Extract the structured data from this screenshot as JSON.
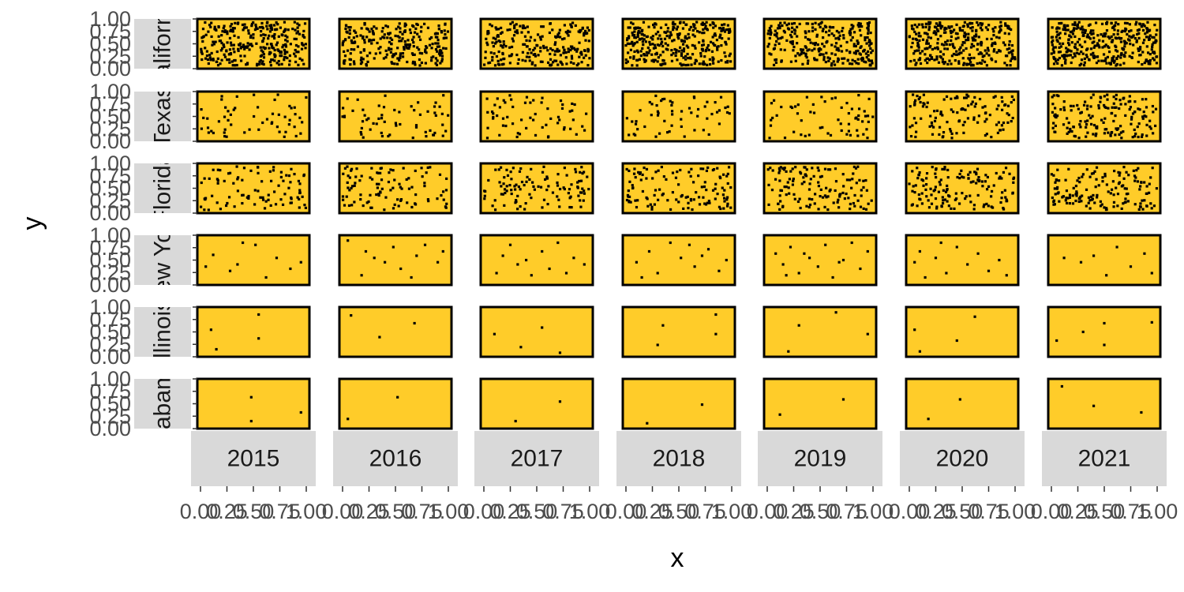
{
  "chart_data": {
    "type": "scatter",
    "facet_rows": [
      "California",
      "Texas",
      "Florida",
      "New York",
      "Illinois",
      "Alabama"
    ],
    "facet_cols": [
      "2015",
      "2016",
      "2017",
      "2018",
      "2019",
      "2020",
      "2021"
    ],
    "xlabel": "x",
    "ylabel": "y",
    "xlim": [
      0,
      1
    ],
    "ylim": [
      0,
      1
    ],
    "x_ticks": [
      "0.00",
      "0.25",
      "0.50",
      "0.75",
      "1.00"
    ],
    "y_ticks": [
      "0.00",
      "0.25",
      "0.50",
      "0.75",
      "1.00"
    ],
    "grid": true,
    "colors": {
      "panel_fill": "#FFCC29",
      "panel_border": "#000000",
      "point": "#000000",
      "strip_fill": "#D9D9D9"
    },
    "point_counts": [
      [
        300,
        250,
        230,
        320,
        270,
        310,
        360
      ],
      [
        55,
        60,
        62,
        58,
        60,
        120,
        160
      ],
      [
        90,
        100,
        110,
        120,
        130,
        140,
        150
      ],
      [
        10,
        12,
        12,
        12,
        15,
        12,
        8
      ],
      [
        4,
        3,
        4,
        4,
        4,
        4,
        5
      ],
      [
        3,
        2,
        2,
        2,
        2,
        2,
        3
      ]
    ],
    "sparse_points": {
      "New York": [
        [
          [
            0.12,
            0.62
          ],
          [
            0.28,
            0.25
          ],
          [
            0.35,
            0.4
          ],
          [
            0.52,
            0.85
          ],
          [
            0.62,
            0.1
          ],
          [
            0.72,
            0.55
          ],
          [
            0.85,
            0.3
          ],
          [
            0.05,
            0.35
          ],
          [
            0.4,
            0.9
          ],
          [
            0.95,
            0.45
          ]
        ],
        [
          [
            0.05,
            0.95
          ],
          [
            0.22,
            0.7
          ],
          [
            0.4,
            0.45
          ],
          [
            0.55,
            0.3
          ],
          [
            0.65,
            0.1
          ],
          [
            0.78,
            0.85
          ],
          [
            0.9,
            0.45
          ],
          [
            0.18,
            0.15
          ],
          [
            0.3,
            0.55
          ],
          [
            0.48,
            0.8
          ],
          [
            0.7,
            0.6
          ],
          [
            0.95,
            0.7
          ]
        ],
        [
          [
            0.12,
            0.2
          ],
          [
            0.25,
            0.85
          ],
          [
            0.4,
            0.5
          ],
          [
            0.55,
            0.7
          ],
          [
            0.62,
            0.3
          ],
          [
            0.78,
            0.2
          ],
          [
            0.85,
            0.55
          ],
          [
            0.18,
            0.6
          ],
          [
            0.45,
            0.15
          ],
          [
            0.7,
            0.9
          ],
          [
            0.95,
            0.4
          ],
          [
            0.32,
            0.4
          ]
        ],
        [
          [
            0.1,
            0.45
          ],
          [
            0.22,
            0.7
          ],
          [
            0.3,
            0.2
          ],
          [
            0.42,
            0.9
          ],
          [
            0.52,
            0.55
          ],
          [
            0.65,
            0.35
          ],
          [
            0.78,
            0.75
          ],
          [
            0.88,
            0.25
          ],
          [
            0.15,
            0.1
          ],
          [
            0.6,
            0.85
          ],
          [
            0.72,
            0.6
          ],
          [
            0.95,
            0.5
          ]
        ],
        [
          [
            0.08,
            0.65
          ],
          [
            0.15,
            0.4
          ],
          [
            0.22,
            0.8
          ],
          [
            0.3,
            0.2
          ],
          [
            0.4,
            0.55
          ],
          [
            0.48,
            0.35
          ],
          [
            0.55,
            0.85
          ],
          [
            0.62,
            0.1
          ],
          [
            0.72,
            0.5
          ],
          [
            0.8,
            0.9
          ],
          [
            0.88,
            0.3
          ],
          [
            0.95,
            0.7
          ],
          [
            0.35,
            0.65
          ],
          [
            0.68,
            0.45
          ],
          [
            0.18,
            0.15
          ]
        ],
        [
          [
            0.05,
            0.45
          ],
          [
            0.1,
            0.7
          ],
          [
            0.15,
            0.1
          ],
          [
            0.25,
            0.55
          ],
          [
            0.35,
            0.2
          ],
          [
            0.45,
            0.8
          ],
          [
            0.55,
            0.4
          ],
          [
            0.65,
            0.65
          ],
          [
            0.75,
            0.25
          ],
          [
            0.85,
            0.5
          ],
          [
            0.92,
            0.15
          ],
          [
            0.3,
            0.9
          ]
        ],
        [
          [
            0.12,
            0.55
          ],
          [
            0.28,
            0.45
          ],
          [
            0.4,
            0.6
          ],
          [
            0.52,
            0.15
          ],
          [
            0.62,
            0.8
          ],
          [
            0.75,
            0.35
          ],
          [
            0.88,
            0.65
          ],
          [
            0.95,
            0.2
          ]
        ]
      ],
      "Illinois": [
        [
          [
            0.1,
            0.55
          ],
          [
            0.55,
            0.9
          ],
          [
            0.55,
            0.35
          ],
          [
            0.15,
            0.1
          ]
        ],
        [
          [
            0.08,
            0.88
          ],
          [
            0.35,
            0.38
          ],
          [
            0.68,
            0.7
          ]
        ],
        [
          [
            0.1,
            0.45
          ],
          [
            0.35,
            0.15
          ],
          [
            0.72,
            0.02
          ],
          [
            0.55,
            0.6
          ]
        ],
        [
          [
            0.35,
            0.65
          ],
          [
            0.3,
            0.2
          ],
          [
            0.85,
            0.9
          ],
          [
            0.85,
            0.45
          ]
        ],
        [
          [
            0.3,
            0.65
          ],
          [
            0.65,
            0.95
          ],
          [
            0.95,
            0.45
          ],
          [
            0.2,
            0.05
          ]
        ],
        [
          [
            0.05,
            0.55
          ],
          [
            0.45,
            0.3
          ],
          [
            0.62,
            0.85
          ],
          [
            0.1,
            0.05
          ]
        ],
        [
          [
            0.05,
            0.3
          ],
          [
            0.5,
            0.7
          ],
          [
            0.5,
            0.2
          ],
          [
            0.95,
            0.72
          ],
          [
            0.3,
            0.5
          ]
        ]
      ],
      "Alabama": [
        [
          [
            0.48,
            0.65
          ],
          [
            0.48,
            0.1
          ],
          [
            0.95,
            0.3
          ]
        ],
        [
          [
            0.05,
            0.15
          ],
          [
            0.52,
            0.65
          ]
        ],
        [
          [
            0.3,
            0.1
          ],
          [
            0.72,
            0.55
          ]
        ],
        [
          [
            0.2,
            0.05
          ],
          [
            0.72,
            0.48
          ]
        ],
        [
          [
            0.12,
            0.25
          ],
          [
            0.72,
            0.6
          ]
        ],
        [
          [
            0.18,
            0.15
          ],
          [
            0.48,
            0.6
          ]
        ],
        [
          [
            0.1,
            0.9
          ],
          [
            0.4,
            0.45
          ],
          [
            0.85,
            0.3
          ]
        ]
      ]
    }
  }
}
